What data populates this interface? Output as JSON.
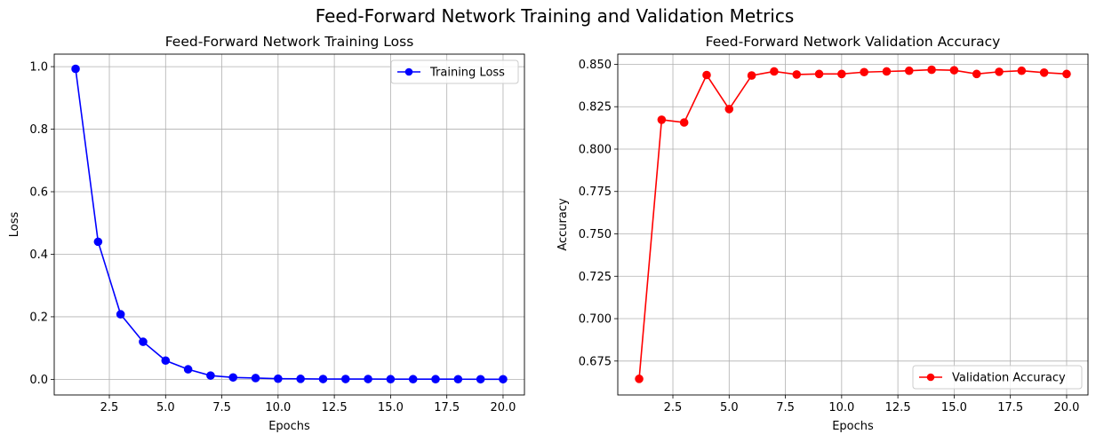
{
  "figure": {
    "suptitle": "Feed-Forward Network Training and Validation Metrics"
  },
  "chart_data": [
    {
      "type": "line",
      "title": "Feed-Forward Network Training Loss",
      "xlabel": "Epochs",
      "ylabel": "Loss",
      "xlim": [
        0.05,
        20.95
      ],
      "ylim": [
        -0.05,
        1.04
      ],
      "xticks": [
        2.5,
        5.0,
        7.5,
        10.0,
        12.5,
        15.0,
        17.5,
        20.0
      ],
      "xtick_labels": [
        "2.5",
        "5.0",
        "7.5",
        "10.0",
        "12.5",
        "15.0",
        "17.5",
        "20.0"
      ],
      "yticks": [
        0.0,
        0.2,
        0.4,
        0.6,
        0.8,
        1.0
      ],
      "ytick_labels": [
        "0.0",
        "0.2",
        "0.4",
        "0.6",
        "0.8",
        "1.0"
      ],
      "grid": true,
      "legend_position": "top-right",
      "x": [
        1,
        2,
        3,
        4,
        5,
        6,
        7,
        8,
        9,
        10,
        11,
        12,
        13,
        14,
        15,
        16,
        17,
        18,
        19,
        20
      ],
      "series": [
        {
          "name": "Training Loss",
          "color": "#0000ff",
          "marker": "circle",
          "values": [
            0.993,
            0.44,
            0.208,
            0.12,
            0.06,
            0.032,
            0.012,
            0.006,
            0.004,
            0.002,
            0.0015,
            0.001,
            0.001,
            0.001,
            0.0005,
            0.0005,
            0.0005,
            0.0004,
            0.0003,
            0.0003
          ]
        }
      ]
    },
    {
      "type": "line",
      "title": "Feed-Forward Network Validation Accuracy",
      "xlabel": "Epochs",
      "ylabel": "Accuracy",
      "xlim": [
        0.05,
        20.95
      ],
      "ylim": [
        0.655,
        0.856
      ],
      "xticks": [
        2.5,
        5.0,
        7.5,
        10.0,
        12.5,
        15.0,
        17.5,
        20.0
      ],
      "xtick_labels": [
        "2.5",
        "5.0",
        "7.5",
        "10.0",
        "12.5",
        "15.0",
        "17.5",
        "20.0"
      ],
      "yticks": [
        0.675,
        0.7,
        0.725,
        0.75,
        0.775,
        0.8,
        0.825,
        0.85
      ],
      "ytick_labels": [
        "0.675",
        "0.700",
        "0.725",
        "0.750",
        "0.775",
        "0.800",
        "0.825",
        "0.850"
      ],
      "grid": true,
      "legend_position": "bottom-right",
      "x": [
        1,
        2,
        3,
        4,
        5,
        6,
        7,
        8,
        9,
        10,
        11,
        12,
        13,
        14,
        15,
        16,
        17,
        18,
        19,
        20
      ],
      "series": [
        {
          "name": "Validation Accuracy",
          "color": "#ff0000",
          "marker": "circle",
          "values": [
            0.6645,
            0.8173,
            0.8157,
            0.8437,
            0.8236,
            0.8434,
            0.8458,
            0.844,
            0.8443,
            0.8443,
            0.8454,
            0.8458,
            0.8462,
            0.8468,
            0.8465,
            0.8443,
            0.8456,
            0.8462,
            0.8451,
            0.8443
          ]
        }
      ]
    }
  ]
}
